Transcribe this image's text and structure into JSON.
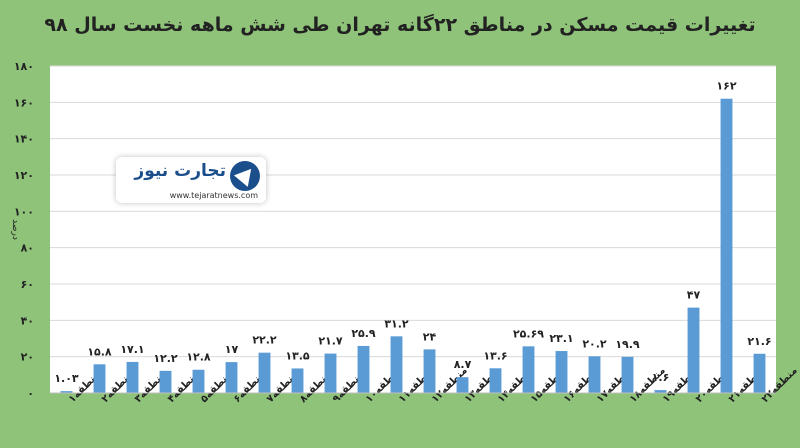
{
  "chart_data": {
    "type": "bar",
    "title": "تغییرات قیمت مسکن در مناطق ۲۲گانه تهران طی شش ماهه نخست سال ۹۸",
    "ylabel": "درصد",
    "xlabel": "",
    "ylim": [
      0,
      180
    ],
    "yticks": [
      0,
      20,
      40,
      60,
      80,
      100,
      120,
      140,
      160,
      180
    ],
    "ytick_labels": [
      "۰",
      "۲۰",
      "۴۰",
      "۶۰",
      "۸۰",
      "۱۰۰",
      "۱۲۰",
      "۱۴۰",
      "۱۶۰",
      "۱۸۰"
    ],
    "grid": true,
    "categories": [
      "منطقه۱",
      "منطقه۲",
      "منطقه۳",
      "منطقه۴",
      "منطقه۵",
      "منطقه۶",
      "منطقه۷",
      "منطقه۸",
      "منطقه۹",
      "منطقه۱۰",
      "منطقه۱۱",
      "منطقه۱۲",
      "منطقه۱۳",
      "منطقه۱۴",
      "منطقه۱۵",
      "منطقه۱۶",
      "منطقه۱۷",
      "منطقه۱۸",
      "منطقه۱۹",
      "منطقه۲۰",
      "منطقه۲۱",
      "منطقه۲۲"
    ],
    "values": [
      1.03,
      15.8,
      17.1,
      12.2,
      12.8,
      17,
      22.2,
      13.5,
      21.7,
      25.9,
      31.2,
      24,
      8.7,
      13.6,
      25.69,
      23.1,
      20.2,
      19.9,
      1.6,
      47,
      162,
      21.6
    ],
    "value_labels": [
      "۱.۰۳",
      "۱۵.۸",
      "۱۷.۱",
      "۱۲.۲",
      "۱۲.۸",
      "۱۷",
      "۲۲.۲",
      "۱۳.۵",
      "۲۱.۷",
      "۲۵.۹",
      "۳۱.۲",
      "۲۴",
      "۸.۷",
      "۱۳.۶",
      "۲۵.۶۹",
      "۲۳.۱",
      "۲۰.۲",
      "۱۹.۹",
      "۱.۶",
      "۴۷",
      "۱۶۲",
      "۲۱.۶"
    ],
    "bar_color": "#5b9bd5"
  },
  "logo": {
    "text": "تجارت نیوز",
    "url": "www.tejaratnews.com"
  }
}
